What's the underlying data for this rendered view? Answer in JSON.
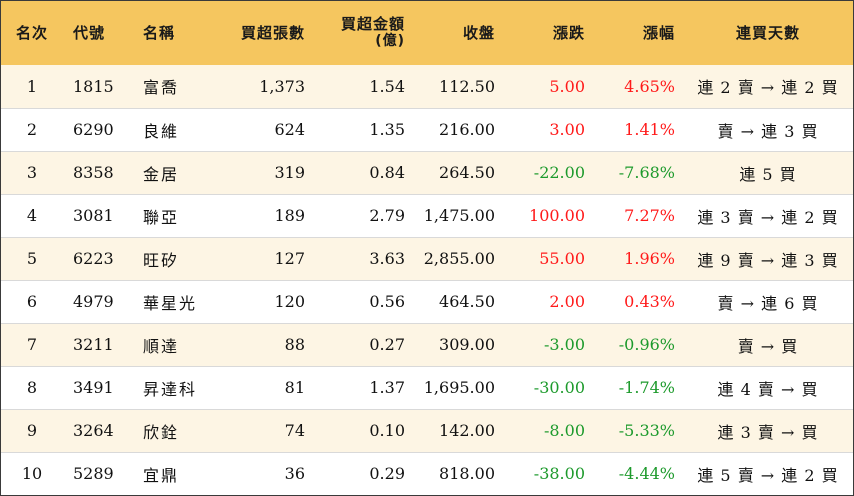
{
  "headers": {
    "rank": "名次",
    "code": "代號",
    "name": "名稱",
    "net_buy_lots": "買超張數",
    "net_buy_amount": "買超金額",
    "net_buy_amount_unit": "(億)",
    "close": "收盤",
    "change": "漲跌",
    "change_pct": "漲幅",
    "streak": "連買天數"
  },
  "rows": [
    {
      "rank": "1",
      "code": "1815",
      "name": "富喬",
      "lots": "1,373",
      "amount": "1.54",
      "close": "112.50",
      "change": "5.00",
      "pct": "4.65%",
      "streak": "連 2 賣 → 連 2 買",
      "dir": "up"
    },
    {
      "rank": "2",
      "code": "6290",
      "name": "良維",
      "lots": "624",
      "amount": "1.35",
      "close": "216.00",
      "change": "3.00",
      "pct": "1.41%",
      "streak": "賣 → 連 3 買",
      "dir": "up"
    },
    {
      "rank": "3",
      "code": "8358",
      "name": "金居",
      "lots": "319",
      "amount": "0.84",
      "close": "264.50",
      "change": "-22.00",
      "pct": "-7.68%",
      "streak": "連 5 買",
      "dir": "down"
    },
    {
      "rank": "4",
      "code": "3081",
      "name": "聯亞",
      "lots": "189",
      "amount": "2.79",
      "close": "1,475.00",
      "change": "100.00",
      "pct": "7.27%",
      "streak": "連 3 賣 → 連 2 買",
      "dir": "up"
    },
    {
      "rank": "5",
      "code": "6223",
      "name": "旺矽",
      "lots": "127",
      "amount": "3.63",
      "close": "2,855.00",
      "change": "55.00",
      "pct": "1.96%",
      "streak": "連 9 賣 → 連 3 買",
      "dir": "up"
    },
    {
      "rank": "6",
      "code": "4979",
      "name": "華星光",
      "lots": "120",
      "amount": "0.56",
      "close": "464.50",
      "change": "2.00",
      "pct": "0.43%",
      "streak": "賣 → 連 6 買",
      "dir": "up"
    },
    {
      "rank": "7",
      "code": "3211",
      "name": "順達",
      "lots": "88",
      "amount": "0.27",
      "close": "309.00",
      "change": "-3.00",
      "pct": "-0.96%",
      "streak": "賣 → 買",
      "dir": "down"
    },
    {
      "rank": "8",
      "code": "3491",
      "name": "昇達科",
      "lots": "81",
      "amount": "1.37",
      "close": "1,695.00",
      "change": "-30.00",
      "pct": "-1.74%",
      "streak": "連 4 賣 → 買",
      "dir": "down"
    },
    {
      "rank": "9",
      "code": "3264",
      "name": "欣銓",
      "lots": "74",
      "amount": "0.10",
      "close": "142.00",
      "change": "-8.00",
      "pct": "-5.33%",
      "streak": "連 3 賣 → 買",
      "dir": "down"
    },
    {
      "rank": "10",
      "code": "5289",
      "name": "宜鼎",
      "lots": "36",
      "amount": "0.29",
      "close": "818.00",
      "change": "-38.00",
      "pct": "-4.44%",
      "streak": "連 5 賣 → 連 2 買",
      "dir": "down"
    }
  ]
}
